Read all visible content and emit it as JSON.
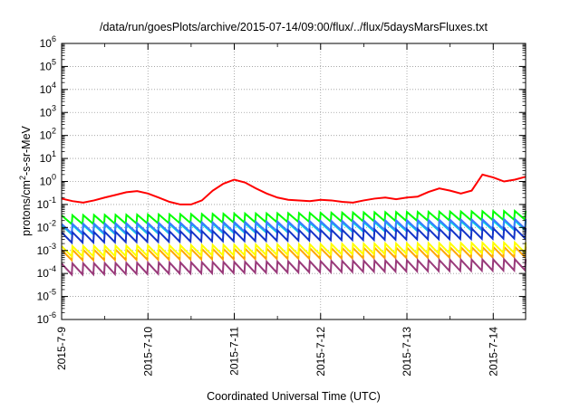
{
  "chart_data": {
    "type": "line",
    "title": "/data/run/goesPlots/archive/2015-07-14/09:00/flux/../flux/5daysMarsFluxes.txt",
    "xlabel": "Coordinated Universal Time (UTC)",
    "ylabel": {
      "pre": "protons/cm",
      "sup": "2",
      "post": "-s-sr-MeV"
    },
    "y_scale": "log",
    "ylim": [
      "1e-6",
      "1e6"
    ],
    "xlim": [
      "2015-07-09 00:00",
      "2015-07-14 09:00"
    ],
    "grid": "dotted, both axes",
    "legend": "none",
    "x_ticks": [
      "2015-7-9",
      "2015-7-10",
      "2015-7-11",
      "2015-7-12",
      "2015-7-13",
      "2015-7-14"
    ],
    "y_ticks": [
      {
        "base": "10",
        "exp": "-6"
      },
      {
        "base": "10",
        "exp": "-5"
      },
      {
        "base": "10",
        "exp": "-4"
      },
      {
        "base": "10",
        "exp": "-3"
      },
      {
        "base": "10",
        "exp": "-2"
      },
      {
        "base": "10",
        "exp": "-1"
      },
      {
        "base": "10",
        "exp": "0"
      },
      {
        "base": "10",
        "exp": "1"
      },
      {
        "base": "10",
        "exp": "2"
      },
      {
        "base": "10",
        "exp": "3"
      },
      {
        "base": "10",
        "exp": "4"
      },
      {
        "base": "10",
        "exp": "5"
      },
      {
        "base": "10",
        "exp": "6"
      }
    ],
    "sawtooth_period_hours": 3,
    "series": [
      {
        "color": "#ff0000",
        "points": [
          [
            "2015-07-09 00:00",
            0.18
          ],
          [
            "2015-07-09 03:00",
            0.14
          ],
          [
            "2015-07-09 06:00",
            0.12
          ],
          [
            "2015-07-09 09:00",
            0.15
          ],
          [
            "2015-07-09 12:00",
            0.2
          ],
          [
            "2015-07-09 15:00",
            0.26
          ],
          [
            "2015-07-09 18:00",
            0.34
          ],
          [
            "2015-07-09 21:00",
            0.38
          ],
          [
            "2015-07-10 00:00",
            0.3
          ],
          [
            "2015-07-10 03:00",
            0.2
          ],
          [
            "2015-07-10 06:00",
            0.13
          ],
          [
            "2015-07-10 09:00",
            0.1
          ],
          [
            "2015-07-10 12:00",
            0.1
          ],
          [
            "2015-07-10 15:00",
            0.15
          ],
          [
            "2015-07-10 18:00",
            0.4
          ],
          [
            "2015-07-10 21:00",
            0.8
          ],
          [
            "2015-07-11 00:00",
            1.2
          ],
          [
            "2015-07-11 03:00",
            0.9
          ],
          [
            "2015-07-11 06:00",
            0.5
          ],
          [
            "2015-07-11 09:00",
            0.3
          ],
          [
            "2015-07-11 12:00",
            0.2
          ],
          [
            "2015-07-11 15:00",
            0.16
          ],
          [
            "2015-07-11 18:00",
            0.15
          ],
          [
            "2015-07-11 21:00",
            0.14
          ],
          [
            "2015-07-12 00:00",
            0.16
          ],
          [
            "2015-07-12 03:00",
            0.15
          ],
          [
            "2015-07-12 06:00",
            0.13
          ],
          [
            "2015-07-12 09:00",
            0.12
          ],
          [
            "2015-07-12 12:00",
            0.15
          ],
          [
            "2015-07-12 15:00",
            0.18
          ],
          [
            "2015-07-12 18:00",
            0.2
          ],
          [
            "2015-07-12 21:00",
            0.17
          ],
          [
            "2015-07-13 00:00",
            0.2
          ],
          [
            "2015-07-13 03:00",
            0.22
          ],
          [
            "2015-07-13 06:00",
            0.35
          ],
          [
            "2015-07-13 09:00",
            0.5
          ],
          [
            "2015-07-13 12:00",
            0.4
          ],
          [
            "2015-07-13 15:00",
            0.3
          ],
          [
            "2015-07-13 18:00",
            0.4
          ],
          [
            "2015-07-13 21:00",
            2.0
          ],
          [
            "2015-07-14 00:00",
            1.5
          ],
          [
            "2015-07-14 03:00",
            1.0
          ],
          [
            "2015-07-14 06:00",
            1.2
          ],
          [
            "2015-07-14 09:00",
            1.6
          ]
        ]
      },
      {
        "color": "#00ff00",
        "sawtooth": {
          "start": 0.014,
          "end": 0.022,
          "peak_ratio": 2.4
        }
      },
      {
        "color": "#00dede",
        "sawtooth": {
          "start": 0.005,
          "end": 0.008,
          "peak_ratio": 2.5
        }
      },
      {
        "color": "#3a7bff",
        "sawtooth": {
          "start": 0.0055,
          "end": 0.009,
          "peak_ratio": 2.6
        }
      },
      {
        "color": "#1434c8",
        "sawtooth": {
          "start": 0.0022,
          "end": 0.0034,
          "peak_ratio": 2.8
        }
      },
      {
        "color": "#ffa500",
        "sawtooth": {
          "start": 0.00038,
          "end": 0.00052,
          "peak_ratio": 2.8
        }
      },
      {
        "color": "#ffff00",
        "sawtooth": {
          "start": 0.00055,
          "end": 0.0008,
          "peak_ratio": 2.8
        }
      },
      {
        "color": "#993a7a",
        "sawtooth": {
          "start": 9e-05,
          "end": 0.00014,
          "peak_ratio": 3.0
        }
      }
    ]
  }
}
